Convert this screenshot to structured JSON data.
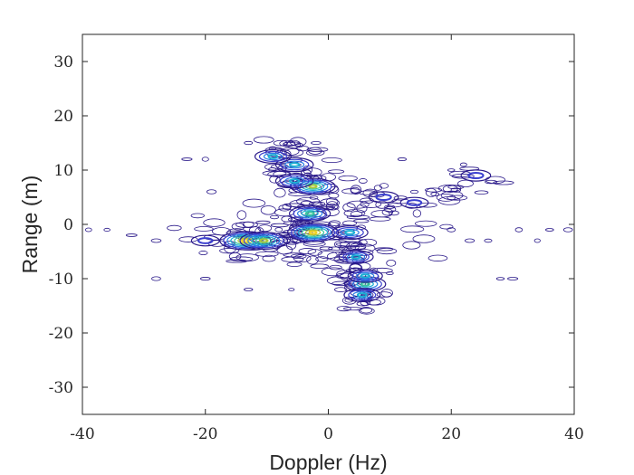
{
  "chart_data": {
    "type": "heatmap",
    "subtype": "contour",
    "xlabel": "Doppler (Hz)",
    "ylabel": "Range (m)",
    "xlim": [
      -40,
      40
    ],
    "ylim": [
      -35,
      35
    ],
    "xticks": [
      -40,
      -20,
      0,
      20,
      40
    ],
    "yticks": [
      -30,
      -20,
      -10,
      0,
      10,
      20,
      30
    ],
    "grid": false,
    "legend": "none",
    "colormap": "parula",
    "contour_line_color": "#2b1a8a",
    "hotspots": [
      {
        "doppler": -13.5,
        "range": -3,
        "intensity": 1.0
      },
      {
        "doppler": -10.5,
        "range": -3,
        "intensity": 0.9
      },
      {
        "doppler": -2.5,
        "range": -1.5,
        "intensity": 1.0
      },
      {
        "doppler": -3,
        "range": 2,
        "intensity": 0.7
      },
      {
        "doppler": -2.5,
        "range": 7,
        "intensity": 0.8
      },
      {
        "doppler": -5.5,
        "range": 8,
        "intensity": 0.6
      },
      {
        "doppler": -5.5,
        "range": 11,
        "intensity": 0.6
      },
      {
        "doppler": -9,
        "range": 12.5,
        "intensity": 0.55
      },
      {
        "doppler": 3.5,
        "range": -1.5,
        "intensity": 0.55
      },
      {
        "doppler": 4.5,
        "range": -6,
        "intensity": 0.5
      },
      {
        "doppler": 6,
        "range": -11,
        "intensity": 0.7
      },
      {
        "doppler": 5.5,
        "range": -13,
        "intensity": 0.55
      },
      {
        "doppler": 6,
        "range": -9.5,
        "intensity": 0.5
      },
      {
        "doppler": 24,
        "range": 9,
        "intensity": 0.35
      },
      {
        "doppler": -20,
        "range": -3,
        "intensity": 0.3
      },
      {
        "doppler": 9,
        "range": 5,
        "intensity": 0.35
      },
      {
        "doppler": 14,
        "range": 4,
        "intensity": 0.3
      }
    ]
  }
}
